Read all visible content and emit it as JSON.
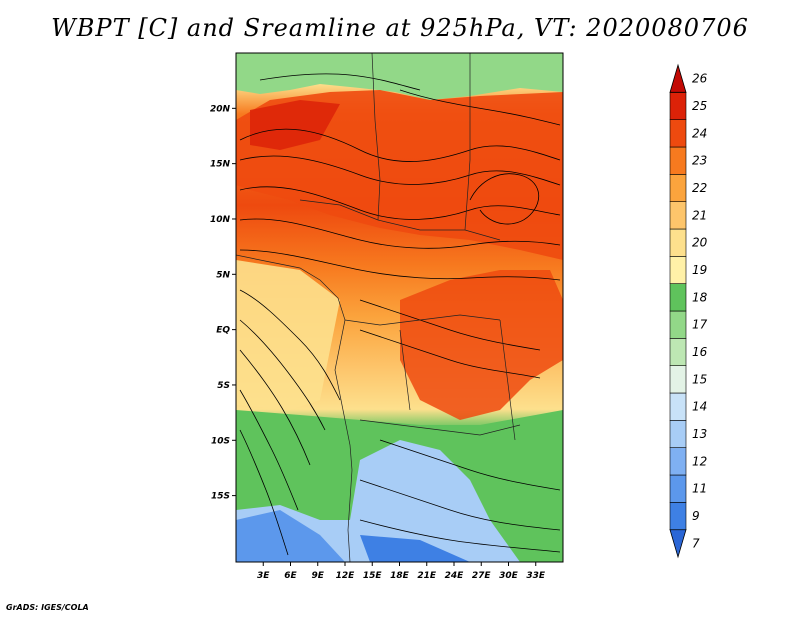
{
  "title": "WBPT [C] and Sreamline at 925hPa, VT: 2020080706",
  "credit": "GrADS: IGES/COLA",
  "map": {
    "lon_range": [
      0,
      36
    ],
    "lat_range": [
      -21,
      25
    ],
    "lon_ticks": [
      "3E",
      "6E",
      "9E",
      "12E",
      "15E",
      "18E",
      "21E",
      "24E",
      "27E",
      "30E",
      "33E"
    ],
    "lat_ticks": [
      "20N",
      "15N",
      "10N",
      "5N",
      "EQ",
      "5S",
      "10S",
      "15S"
    ]
  },
  "colorbar": {
    "labels": [
      "7",
      "9",
      "11",
      "12",
      "13",
      "14",
      "15",
      "16",
      "17",
      "18",
      "19",
      "20",
      "21",
      "22",
      "23",
      "24",
      "25",
      "26"
    ],
    "colors": [
      "#2a66d6",
      "#3e80e4",
      "#5c98ec",
      "#7fb0f2",
      "#a8cdf6",
      "#c8e2f8",
      "#e3f3e6",
      "#bde7b3",
      "#92d888",
      "#5fc35c",
      "#fff1a8",
      "#fde08d",
      "#fdc56b",
      "#fba43d",
      "#f77a1f",
      "#ee4a0f",
      "#dc2208",
      "#c20a05"
    ]
  }
}
